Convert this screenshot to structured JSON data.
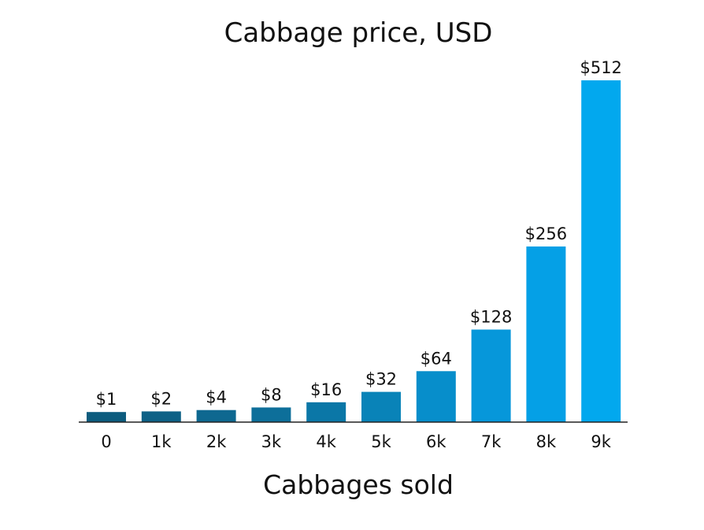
{
  "chart_data": {
    "type": "bar",
    "title": "Cabbage price, USD",
    "xlabel": "Cabbages sold",
    "ylabel": "",
    "categories": [
      "0",
      "1k",
      "2k",
      "3k",
      "4k",
      "5k",
      "6k",
      "7k",
      "8k",
      "9k"
    ],
    "values": [
      1,
      2,
      4,
      8,
      16,
      32,
      64,
      128,
      256,
      512
    ],
    "data_labels": [
      "$1",
      "$2",
      "$4",
      "$8",
      "$16",
      "$32",
      "$64",
      "$128",
      "$256",
      "$512"
    ],
    "ylim": [
      0,
      512
    ],
    "grid": false,
    "legend": "none",
    "colors": [
      "#0d5c7e",
      "#0e6186",
      "#0e6890",
      "#0d6f9a",
      "#0b77a7",
      "#0983b8",
      "#078ecb",
      "#0697da",
      "#05a0e6",
      "#02a8ee"
    ]
  }
}
